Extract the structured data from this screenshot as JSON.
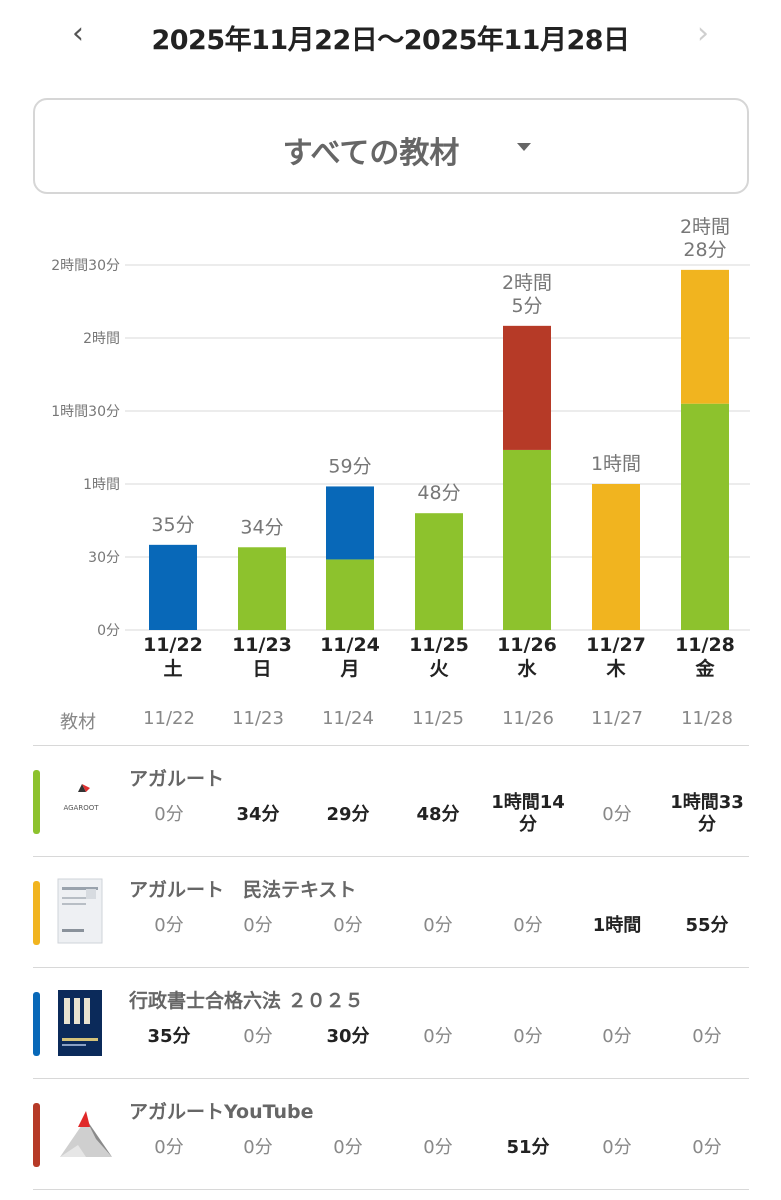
{
  "header": {
    "prev_icon": "chevron-left-icon",
    "next_icon": "chevron-right-icon",
    "date_range": "2025年11月22日〜2025年11月28日"
  },
  "material_select": {
    "label": "すべての教材",
    "icon": "caret-down-icon"
  },
  "colors": {
    "green": "#8dc22d",
    "yellow": "#f1b41f",
    "blue": "#0868b8",
    "red": "#b63a27",
    "grid": "#d9d9d9"
  },
  "chart_data": {
    "type": "bar",
    "stacked": true,
    "y_unit": "minutes",
    "ylim": [
      0,
      150
    ],
    "y_ticks": [
      {
        "value": 0,
        "label": "0分"
      },
      {
        "value": 30,
        "label": "30分"
      },
      {
        "value": 60,
        "label": "1時間"
      },
      {
        "value": 90,
        "label": "1時間30分"
      },
      {
        "value": 120,
        "label": "2時間"
      },
      {
        "value": 150,
        "label": "2時間30分"
      }
    ],
    "categories": [
      {
        "date": "11/22",
        "weekday": "土"
      },
      {
        "date": "11/23",
        "weekday": "日"
      },
      {
        "date": "11/24",
        "weekday": "月"
      },
      {
        "date": "11/25",
        "weekday": "火"
      },
      {
        "date": "11/26",
        "weekday": "水"
      },
      {
        "date": "11/27",
        "weekday": "木"
      },
      {
        "date": "11/28",
        "weekday": "金"
      }
    ],
    "totals": [
      [
        "35分"
      ],
      [
        "34分"
      ],
      [
        "59分"
      ],
      [
        "48分"
      ],
      [
        "2時間",
        "5分"
      ],
      [
        "1時間"
      ],
      [
        "2時間",
        "28分"
      ]
    ],
    "series": [
      {
        "color": "#8dc22d",
        "values": [
          0,
          34,
          29,
          48,
          74,
          0,
          93
        ]
      },
      {
        "color": "#f1b41f",
        "values": [
          0,
          0,
          0,
          0,
          0,
          60,
          55
        ]
      },
      {
        "color": "#0868b8",
        "values": [
          35,
          0,
          30,
          0,
          0,
          0,
          0
        ]
      },
      {
        "color": "#b63a27",
        "values": [
          0,
          0,
          0,
          0,
          51,
          0,
          0
        ]
      }
    ],
    "grid": true
  },
  "table": {
    "header_label": "教材",
    "dates": [
      "11/22",
      "11/23",
      "11/24",
      "11/25",
      "11/26",
      "11/27",
      "11/28"
    ],
    "rows": [
      {
        "name": "アガルート",
        "color": "#8dc22d",
        "thumb_icon": "agaroot-logo-icon",
        "values": [
          "0分",
          "34分",
          "29分",
          "48分",
          "1時間14分",
          "0分",
          "1時間33分"
        ],
        "bold": [
          false,
          true,
          true,
          true,
          true,
          false,
          true
        ]
      },
      {
        "name": "アガルート　民法テキスト",
        "color": "#f1b41f",
        "thumb_icon": "civil-law-textbook-cover-icon",
        "values": [
          "0分",
          "0分",
          "0分",
          "0分",
          "0分",
          "1時間",
          "55分"
        ],
        "bold": [
          false,
          false,
          false,
          false,
          false,
          true,
          true
        ]
      },
      {
        "name": "行政書士合格六法 ２０２５",
        "color": "#0868b8",
        "thumb_icon": "roppo-book-cover-icon",
        "values": [
          "35分",
          "0分",
          "30分",
          "0分",
          "0分",
          "0分",
          "0分"
        ],
        "bold": [
          true,
          false,
          true,
          false,
          false,
          false,
          false
        ]
      },
      {
        "name": "アガルートYouTube",
        "color": "#b63a27",
        "thumb_icon": "agaroot-youtube-logo-icon",
        "values": [
          "0分",
          "0分",
          "0分",
          "0分",
          "51分",
          "0分",
          "0分"
        ],
        "bold": [
          false,
          false,
          false,
          false,
          true,
          false,
          false
        ]
      }
    ]
  }
}
